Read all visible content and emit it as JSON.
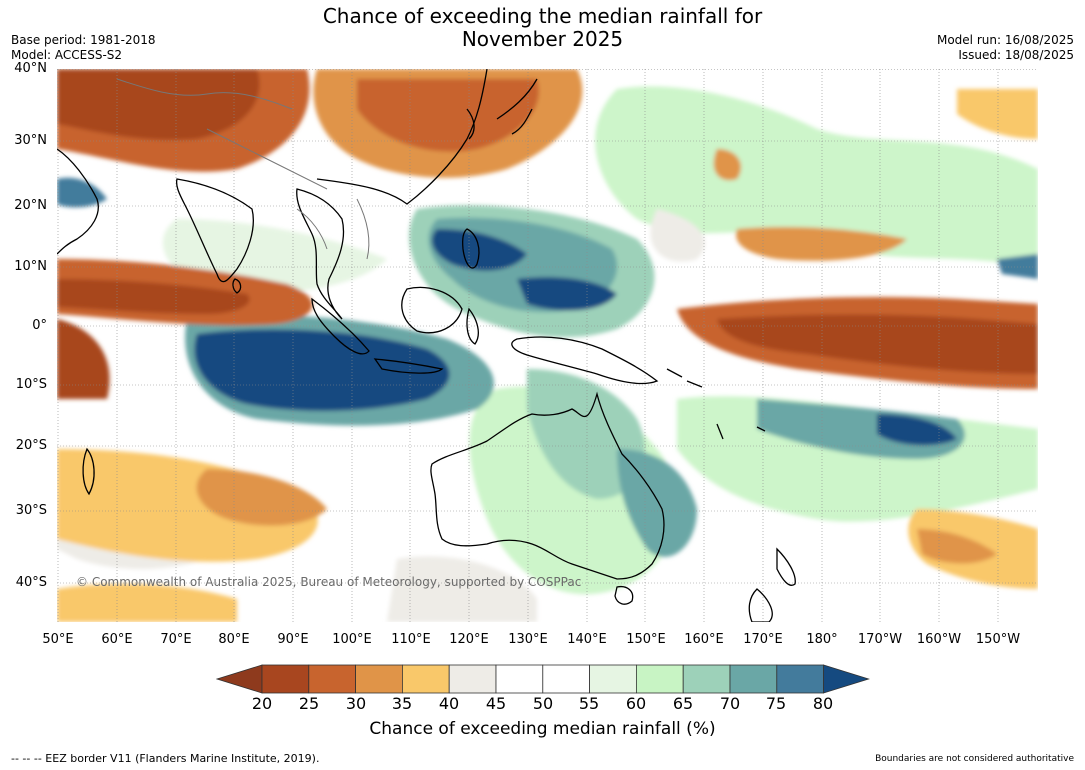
{
  "title_line1": "Chance of exceeding the median rainfall for",
  "title_line2": "November 2025",
  "base_period": "Base period: 1981-2018",
  "model": "Model: ACCESS-S2",
  "model_run": "Model run: 16/08/2025",
  "issued": "Issued: 18/08/2025",
  "copyright": "© Commonwealth of Australia 2025, Bureau of Meteorology, supported by COSPPac",
  "lat_labels": [
    "40°N",
    "30°N",
    "20°N",
    "10°N",
    "0°",
    "10°S",
    "20°S",
    "30°S",
    "40°S"
  ],
  "lon_labels": [
    "50°E",
    "60°E",
    "70°E",
    "80°E",
    "90°E",
    "100°E",
    "110°E",
    "120°E",
    "130°E",
    "140°E",
    "150°E",
    "160°E",
    "170°E",
    "180°",
    "170°W",
    "160°W",
    "150°W"
  ],
  "colorbar": {
    "ticks": [
      "20",
      "25",
      "30",
      "35",
      "40",
      "45",
      "50",
      "55",
      "60",
      "65",
      "70",
      "75",
      "80"
    ],
    "colors": [
      "#8e3a1d",
      "#a8461f",
      "#c8642e",
      "#e09448",
      "#f9c86a",
      "#eeece7",
      "#ffffff",
      "#ffffff",
      "#e6f5e3",
      "#c8f4c4",
      "#9dd1b9",
      "#6aa7a6",
      "#437b9c",
      "#154a80"
    ],
    "title": "Chance of exceeding median rainfall (%)"
  },
  "footer_left": "--  --  -- EEZ border V11 (Flanders Marine Institute, 2019).",
  "footer_right": "Boundaries are not considered authoritative"
}
